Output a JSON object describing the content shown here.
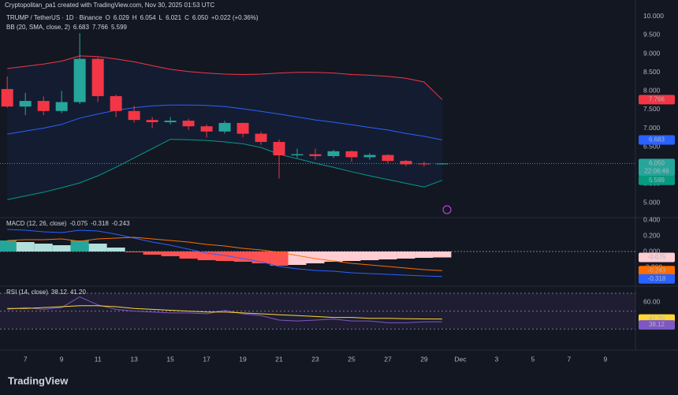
{
  "header": {
    "watermark": "Cryptopolitan_pa1 created with TradingView.com, Nov 30, 2025 01:53 UTC",
    "logo": "TradingView"
  },
  "chart_data": [
    {
      "type": "candlestick",
      "title": "TRUMP / TetherUS · 1D · Binance",
      "x": [
        6,
        7,
        8,
        9,
        10,
        11,
        12,
        13,
        14,
        15,
        16,
        17,
        18,
        19,
        20,
        21,
        22,
        23,
        24,
        25,
        26,
        27,
        28,
        29,
        30
      ],
      "open": [
        8.05,
        7.58,
        7.73,
        7.46,
        7.7,
        8.86,
        7.86,
        7.46,
        7.22,
        7.16,
        7.2,
        7.05,
        6.91,
        7.14,
        6.85,
        6.63,
        6.27,
        6.3,
        6.25,
        6.38,
        6.22,
        6.28,
        6.12,
        6.05,
        6.029
      ],
      "high": [
        8.39,
        7.95,
        7.85,
        8.0,
        9.55,
        8.9,
        7.9,
        7.6,
        7.3,
        7.3,
        7.25,
        7.1,
        7.2,
        7.15,
        6.9,
        6.7,
        6.45,
        6.45,
        6.42,
        6.4,
        6.33,
        6.3,
        6.15,
        6.1,
        6.054
      ],
      "low": [
        7.55,
        7.35,
        7.35,
        7.4,
        7.65,
        7.7,
        7.3,
        7.15,
        7.0,
        7.1,
        6.95,
        6.75,
        6.85,
        6.75,
        6.55,
        5.65,
        6.2,
        6.15,
        6.2,
        6.1,
        6.15,
        6.05,
        5.98,
        5.97,
        6.021
      ],
      "close": [
        7.58,
        7.73,
        7.46,
        7.7,
        8.86,
        7.86,
        7.46,
        7.22,
        7.16,
        7.2,
        7.05,
        6.91,
        7.14,
        6.85,
        6.63,
        6.27,
        6.3,
        6.25,
        6.38,
        6.22,
        6.28,
        6.12,
        6.03,
        6.03,
        6.05
      ],
      "up_color": "#26a69a",
      "down_color": "#f23645",
      "legend": [
        {
          "key": "O",
          "text": "6.029"
        },
        {
          "key": "H",
          "text": "6.054"
        },
        {
          "key": "L",
          "text": "6.021"
        },
        {
          "key": "C",
          "text": "6.050"
        }
      ],
      "change": "+0.022 (+0.36%)",
      "last_label": "6.050",
      "countdown": "22:06:46",
      "indicator": "BB (20, SMA, close, 2)",
      "band_fill": "rgba(41,98,255,0.07)",
      "bands": [
        {
          "color": "#2962ff",
          "last_label": "6.683",
          "values": [
            6.84,
            6.92,
            7.0,
            7.1,
            7.27,
            7.38,
            7.48,
            7.55,
            7.6,
            7.62,
            7.62,
            7.61,
            7.58,
            7.52,
            7.45,
            7.38,
            7.3,
            7.22,
            7.16,
            7.09,
            7.02,
            6.95,
            6.86,
            6.78,
            6.683
          ]
        },
        {
          "color": "#f23645",
          "last_label": "7.766",
          "values": [
            8.6,
            8.66,
            8.72,
            8.8,
            8.94,
            8.92,
            8.86,
            8.78,
            8.68,
            8.58,
            8.52,
            8.48,
            8.45,
            8.44,
            8.45,
            8.48,
            8.5,
            8.5,
            8.48,
            8.44,
            8.42,
            8.39,
            8.34,
            8.24,
            7.766
          ]
        },
        {
          "color": "#089981",
          "last_label": "5.599",
          "values": [
            5.08,
            5.18,
            5.28,
            5.4,
            5.53,
            5.72,
            5.95,
            6.2,
            6.45,
            6.7,
            6.69,
            6.67,
            6.63,
            6.58,
            6.48,
            6.3,
            6.18,
            6.06,
            5.95,
            5.83,
            5.72,
            5.62,
            5.52,
            5.42,
            5.599
          ]
        }
      ],
      "xlim": [
        5.6,
        40.4
      ],
      "xticks": [
        7,
        9,
        11,
        13,
        15,
        17,
        19,
        21,
        23,
        25,
        27,
        29,
        {
          "value": 31,
          "label": "Dec"
        },
        {
          "value": 33,
          "label": "3"
        },
        {
          "value": 35,
          "label": "5"
        },
        {
          "value": 37,
          "label": "7"
        },
        {
          "value": 39,
          "label": "9"
        }
      ],
      "ylim": [
        4.62,
        10.44
      ],
      "yticks": [
        {
          "value": 5,
          "label": "5.000"
        },
        {
          "value": 5.5,
          "label": "5.500"
        },
        {
          "value": 6,
          "label": "6.000"
        },
        {
          "value": 6.5,
          "label": "6.500"
        },
        {
          "value": 7,
          "label": "7.000"
        },
        {
          "value": 7.5,
          "label": "7.500"
        },
        {
          "value": 8,
          "label": "8.000"
        },
        {
          "value": 8.5,
          "label": "8.500"
        },
        {
          "value": 9,
          "label": "9.000"
        },
        {
          "value": 9.5,
          "label": "9.500"
        },
        {
          "value": 10,
          "label": "10.000"
        }
      ]
    },
    {
      "type": "macd",
      "title": "MACD (12, 26, close)",
      "histogram": {
        "last_label": "-0.075",
        "palette": [
          "#26a69a",
          "#b2dfdb",
          "#ff5252",
          "#ffcdd2"
        ],
        "values": [
          0.14,
          0.12,
          0.1,
          0.08,
          0.14,
          0.1,
          0.05,
          -0.01,
          -0.04,
          -0.06,
          -0.09,
          -0.11,
          -0.12,
          -0.13,
          -0.15,
          -0.18,
          -0.17,
          -0.15,
          -0.13,
          -0.12,
          -0.11,
          -0.1,
          -0.09,
          -0.08,
          -0.075
        ]
      },
      "macd": {
        "color": "#2962ff",
        "last_label": "-0.318",
        "values": [
          0.28,
          0.27,
          0.25,
          0.24,
          0.27,
          0.26,
          0.22,
          0.17,
          0.12,
          0.08,
          0.03,
          -0.02,
          -0.05,
          -0.09,
          -0.13,
          -0.19,
          -0.22,
          -0.24,
          -0.25,
          -0.27,
          -0.28,
          -0.29,
          -0.3,
          -0.31,
          -0.318
        ]
      },
      "signal": {
        "color": "#ff6d00",
        "last_label": "-0.243",
        "values": [
          0.14,
          0.15,
          0.15,
          0.16,
          0.13,
          0.16,
          0.17,
          0.18,
          0.16,
          0.14,
          0.12,
          0.09,
          0.07,
          0.04,
          0.02,
          -0.01,
          -0.05,
          -0.09,
          -0.12,
          -0.15,
          -0.17,
          -0.19,
          -0.21,
          -0.23,
          -0.243
        ]
      },
      "ylim": [
        -0.43,
        0.42
      ],
      "yticks": [
        {
          "value": 0.4,
          "label": "0.400"
        },
        {
          "value": 0.2,
          "label": "0.200"
        },
        {
          "value": 0,
          "label": "0.000"
        },
        {
          "value": -0.2,
          "label": "-0.200"
        }
      ]
    },
    {
      "type": "rsi",
      "title": "RSI (14, close)",
      "rsi": {
        "color": "#7e57c2",
        "last_label": "38.12",
        "values": [
          52,
          54,
          52,
          54,
          66,
          57,
          52,
          50,
          49,
          48,
          48,
          47,
          51,
          47,
          45,
          40,
          39,
          40,
          41,
          39,
          39,
          37,
          37,
          38,
          38.12
        ]
      },
      "ma": {
        "color": "#fdd835",
        "last_label": "41.20",
        "values": [
          53,
          53,
          54,
          55,
          56,
          56,
          55,
          53,
          52,
          51,
          50,
          49,
          49,
          48,
          47,
          46,
          45,
          44,
          43,
          43,
          42,
          42,
          41.5,
          41.3,
          41.2
        ]
      },
      "levels": [
        70,
        50,
        30
      ],
      "level_fill": "rgba(126,87,194,0.1)",
      "ylim": [
        10,
        77
      ],
      "yticks": [
        {
          "value": 60,
          "label": "60.00"
        }
      ]
    }
  ]
}
